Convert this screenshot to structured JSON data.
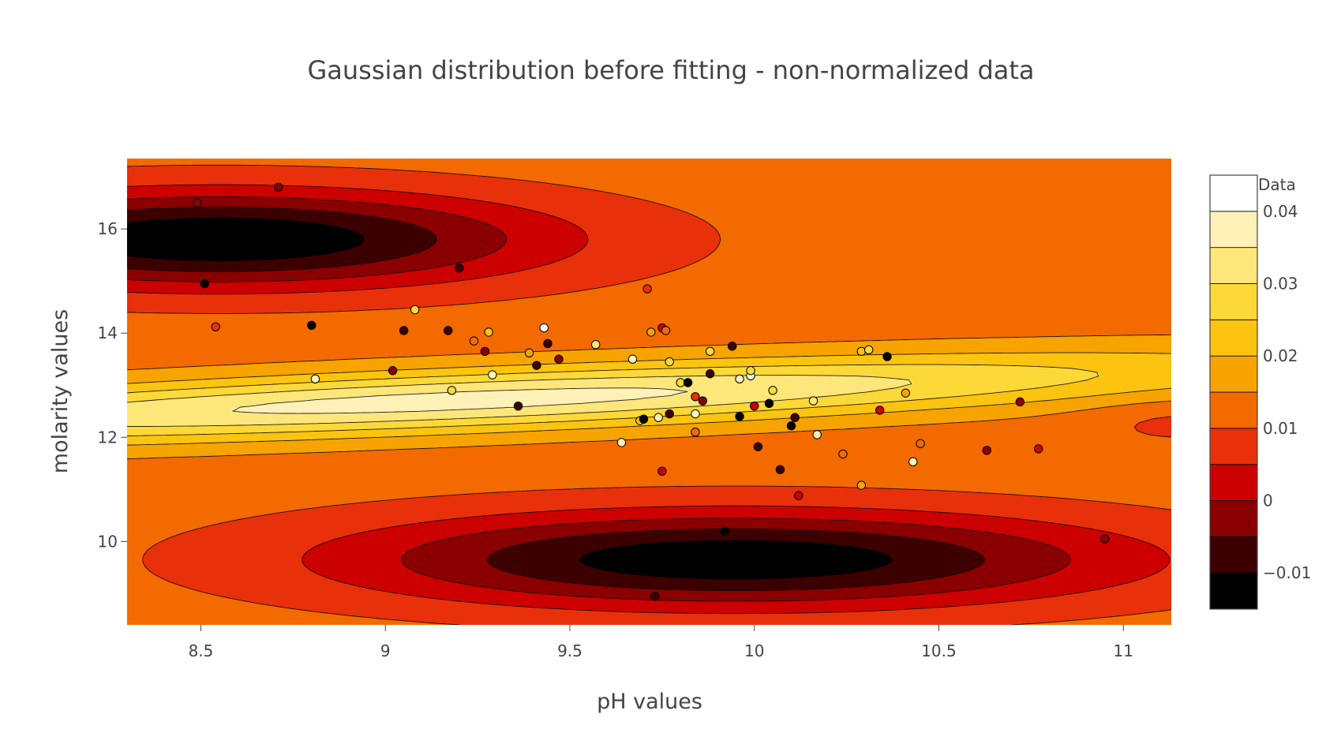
{
  "chart_data": {
    "type": "contour",
    "title": "Gaussian distribution before fitting - non-normalized data",
    "xlabel": "pH values",
    "ylabel": "molarity values",
    "xlim": [
      8.3,
      11.13
    ],
    "ylim": [
      8.4,
      17.35
    ],
    "xticks": [
      8.5,
      9,
      9.5,
      10,
      10.5,
      11
    ],
    "xtick_labels": [
      "8.5",
      "9",
      "9.5",
      "10",
      "10.5",
      "11"
    ],
    "yticks": [
      10,
      12,
      14,
      16
    ],
    "ytick_labels": [
      "10",
      "12",
      "14",
      "16"
    ],
    "colorbar": {
      "title": "Data",
      "ticks": [
        -0.01,
        0,
        0.01,
        0.02,
        0.03,
        0.04
      ],
      "tick_labels": [
        "−0.01",
        "0",
        "0.01",
        "0.02",
        "0.03",
        "0.04"
      ],
      "levels": [
        -0.015,
        -0.01,
        -0.005,
        0,
        0.005,
        0.01,
        0.015,
        0.02,
        0.025,
        0.03,
        0.035,
        0.04,
        0.045
      ],
      "colors": [
        "#000000",
        "#3d0000",
        "#8a0000",
        "#cc0000",
        "#e8300a",
        "#f26a00",
        "#f7a300",
        "#fac410",
        "#fcd938",
        "#fde67a",
        "#fff1b8",
        "#ffffff"
      ]
    },
    "surface": {
      "baseline": 0.0125,
      "components": [
        {
          "x0": 9.2,
          "y0": 12.7,
          "sx": 1.5,
          "sy": 0.6,
          "rho": 0.72,
          "amp": 0.0245
        },
        {
          "x0": 8.55,
          "y0": 15.8,
          "sx": 0.62,
          "sy": 0.65,
          "rho": 0.0,
          "amp": -0.0275
        },
        {
          "x0": 9.95,
          "y0": 9.65,
          "sx": 0.74,
          "sy": 0.65,
          "rho": 0.0,
          "amp": -0.0265
        },
        {
          "x0": 11.15,
          "y0": 12.3,
          "sx": 0.18,
          "sy": 0.32,
          "rho": 0.0,
          "amp": -0.004
        }
      ]
    },
    "points": [
      {
        "x": 8.49,
        "y": 16.5,
        "v": -0.003
      },
      {
        "x": 8.71,
        "y": 16.8,
        "v": -0.005
      },
      {
        "x": 8.51,
        "y": 14.95,
        "v": -0.012
      },
      {
        "x": 9.2,
        "y": 15.25,
        "v": -0.006
      },
      {
        "x": 8.54,
        "y": 14.12,
        "v": 0.009
      },
      {
        "x": 8.8,
        "y": 14.15,
        "v": -0.014
      },
      {
        "x": 8.81,
        "y": 13.12,
        "v": 0.036
      },
      {
        "x": 9.02,
        "y": 13.28,
        "v": -0.003
      },
      {
        "x": 9.05,
        "y": 14.05,
        "v": -0.007
      },
      {
        "x": 9.08,
        "y": 14.45,
        "v": 0.027
      },
      {
        "x": 9.17,
        "y": 14.05,
        "v": -0.006
      },
      {
        "x": 9.18,
        "y": 12.9,
        "v": 0.026
      },
      {
        "x": 9.24,
        "y": 13.85,
        "v": 0.013
      },
      {
        "x": 9.27,
        "y": 13.65,
        "v": -0.004
      },
      {
        "x": 9.28,
        "y": 14.02,
        "v": 0.024
      },
      {
        "x": 9.29,
        "y": 13.2,
        "v": 0.036
      },
      {
        "x": 9.36,
        "y": 12.6,
        "v": -0.01
      },
      {
        "x": 9.39,
        "y": 13.62,
        "v": 0.019
      },
      {
        "x": 9.41,
        "y": 13.38,
        "v": -0.008
      },
      {
        "x": 9.43,
        "y": 14.1,
        "v": 0.045
      },
      {
        "x": 9.44,
        "y": 13.8,
        "v": -0.007
      },
      {
        "x": 9.47,
        "y": 13.5,
        "v": -0.004
      },
      {
        "x": 9.57,
        "y": 13.78,
        "v": 0.034
      },
      {
        "x": 9.67,
        "y": 13.5,
        "v": 0.036
      },
      {
        "x": 9.71,
        "y": 14.85,
        "v": 0.007
      },
      {
        "x": 9.72,
        "y": 14.02,
        "v": 0.016
      },
      {
        "x": 9.75,
        "y": 14.1,
        "v": 0.002
      },
      {
        "x": 9.76,
        "y": 14.05,
        "v": 0.01
      },
      {
        "x": 9.77,
        "y": 13.45,
        "v": 0.028
      },
      {
        "x": 9.8,
        "y": 13.05,
        "v": 0.029
      },
      {
        "x": 9.82,
        "y": 13.05,
        "v": -0.012
      },
      {
        "x": 9.84,
        "y": 12.78,
        "v": 0.008
      },
      {
        "x": 9.86,
        "y": 12.7,
        "v": -0.003
      },
      {
        "x": 9.88,
        "y": 13.22,
        "v": -0.006
      },
      {
        "x": 9.88,
        "y": 13.65,
        "v": 0.025
      },
      {
        "x": 9.94,
        "y": 13.75,
        "v": -0.009
      },
      {
        "x": 9.96,
        "y": 13.12,
        "v": 0.037
      },
      {
        "x": 9.99,
        "y": 13.18,
        "v": 0.042
      },
      {
        "x": 9.99,
        "y": 13.28,
        "v": 0.026
      },
      {
        "x": 9.64,
        "y": 11.9,
        "v": 0.036
      },
      {
        "x": 9.69,
        "y": 12.32,
        "v": 0.02
      },
      {
        "x": 9.7,
        "y": 12.35,
        "v": -0.013
      },
      {
        "x": 9.74,
        "y": 12.38,
        "v": 0.038
      },
      {
        "x": 9.77,
        "y": 12.45,
        "v": -0.01
      },
      {
        "x": 9.84,
        "y": 12.45,
        "v": 0.038
      },
      {
        "x": 9.84,
        "y": 12.1,
        "v": 0.013
      },
      {
        "x": 9.75,
        "y": 11.35,
        "v": 0.001
      },
      {
        "x": 9.96,
        "y": 12.4,
        "v": -0.011
      },
      {
        "x": 10.0,
        "y": 12.6,
        "v": 0.002
      },
      {
        "x": 10.04,
        "y": 12.65,
        "v": -0.012
      },
      {
        "x": 10.05,
        "y": 12.9,
        "v": 0.028
      },
      {
        "x": 10.01,
        "y": 11.82,
        "v": -0.006
      },
      {
        "x": 10.07,
        "y": 11.38,
        "v": -0.007
      },
      {
        "x": 10.11,
        "y": 12.38,
        "v": -0.008
      },
      {
        "x": 10.1,
        "y": 12.22,
        "v": -0.011
      },
      {
        "x": 10.12,
        "y": 10.88,
        "v": 0.001
      },
      {
        "x": 10.16,
        "y": 12.7,
        "v": 0.03
      },
      {
        "x": 10.17,
        "y": 12.05,
        "v": 0.037
      },
      {
        "x": 10.24,
        "y": 11.68,
        "v": 0.014
      },
      {
        "x": 10.29,
        "y": 13.65,
        "v": 0.021
      },
      {
        "x": 10.31,
        "y": 13.68,
        "v": 0.028
      },
      {
        "x": 10.36,
        "y": 13.55,
        "v": -0.013
      },
      {
        "x": 10.34,
        "y": 12.52,
        "v": 0.003
      },
      {
        "x": 10.29,
        "y": 11.08,
        "v": 0.018
      },
      {
        "x": 10.41,
        "y": 12.85,
        "v": 0.016
      },
      {
        "x": 10.43,
        "y": 11.53,
        "v": 0.036
      },
      {
        "x": 10.45,
        "y": 11.88,
        "v": 0.012
      },
      {
        "x": 10.63,
        "y": 11.75,
        "v": -0.003
      },
      {
        "x": 10.72,
        "y": 12.68,
        "v": -0.002
      },
      {
        "x": 10.77,
        "y": 11.78,
        "v": 0.002
      },
      {
        "x": 9.92,
        "y": 10.2,
        "v": -0.016
      },
      {
        "x": 9.73,
        "y": 8.95,
        "v": -0.008
      },
      {
        "x": 10.95,
        "y": 10.05,
        "v": -0.004
      }
    ]
  }
}
